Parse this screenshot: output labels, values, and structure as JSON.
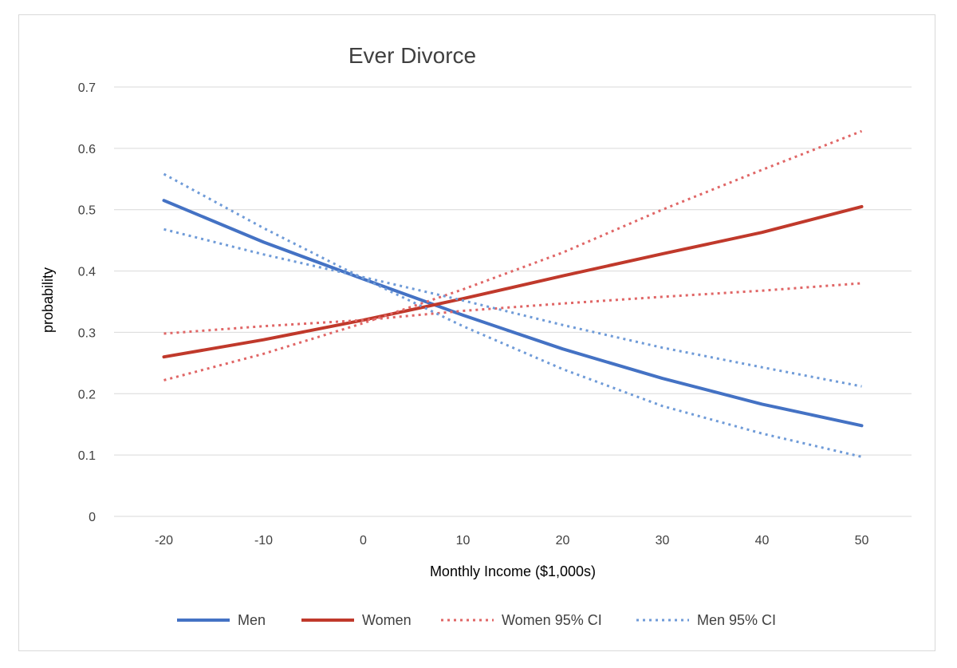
{
  "chart_data": {
    "type": "line",
    "title": "Ever Divorce",
    "xlabel": "Monthly Income ($1,000s)",
    "ylabel": "probability",
    "x": [
      -20,
      -10,
      0,
      10,
      20,
      30,
      40,
      50
    ],
    "xlim": [
      -25,
      55
    ],
    "ylim": [
      0,
      0.7
    ],
    "x_ticks": [
      -20,
      -10,
      0,
      10,
      20,
      30,
      40,
      50
    ],
    "y_ticks": [
      0,
      0.1,
      0.2,
      0.3,
      0.4,
      0.5,
      0.6,
      0.7
    ],
    "y_tick_labels": [
      "0",
      "0.1",
      "0.2",
      "0.3",
      "0.4",
      "0.5",
      "0.6",
      "0.7"
    ],
    "grid": "horizontal",
    "legend_position": "bottom",
    "series": [
      {
        "name": "Men",
        "style": "solid",
        "color": "#4472c4",
        "values": [
          0.515,
          0.447,
          0.387,
          0.328,
          0.273,
          0.225,
          0.183,
          0.148
        ]
      },
      {
        "name": "Women",
        "style": "solid",
        "color": "#c0392b",
        "values": [
          0.26,
          0.288,
          0.32,
          0.355,
          0.392,
          0.428,
          0.463,
          0.505
        ]
      },
      {
        "name": "Women 95% CI",
        "style": "dotted",
        "color": "#e06666",
        "values": [
          0.222,
          0.265,
          0.315,
          0.37,
          0.43,
          0.5,
          0.565,
          0.628
        ]
      },
      {
        "name": "Women 95% CI",
        "style": "dotted",
        "color": "#e06666",
        "values": [
          0.298,
          0.31,
          0.32,
          0.335,
          0.347,
          0.358,
          0.368,
          0.38
        ],
        "legend": false
      },
      {
        "name": "Men 95% CI",
        "style": "dotted",
        "color": "#6f9bd8",
        "values": [
          0.558,
          0.47,
          0.388,
          0.31,
          0.24,
          0.18,
          0.135,
          0.097
        ]
      },
      {
        "name": "Men 95% CI",
        "style": "dotted",
        "color": "#6f9bd8",
        "values": [
          0.468,
          0.427,
          0.39,
          0.352,
          0.312,
          0.275,
          0.243,
          0.212
        ],
        "legend": false
      }
    ]
  }
}
